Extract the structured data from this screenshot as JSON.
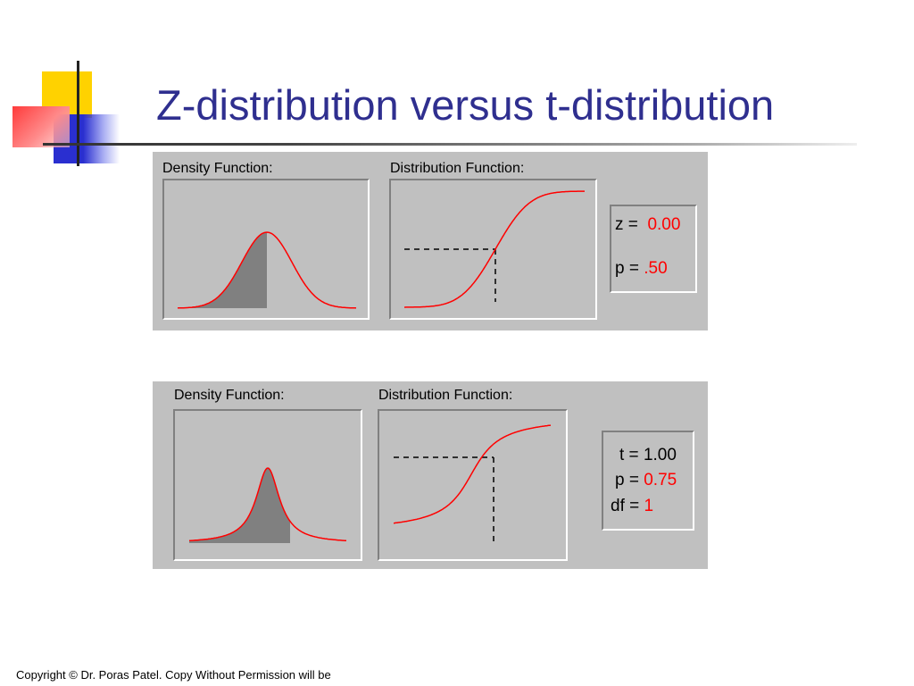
{
  "title": "Z-distribution versus t-distribution",
  "z_panel": {
    "density_label": "Density Function:",
    "distribution_label": "Distribution Function:",
    "z_label": "z =",
    "z_value": "0.00",
    "p_label": "p =",
    "p_value": ".50"
  },
  "t_panel": {
    "density_label": "Density Function:",
    "distribution_label": "Distribution Function:",
    "t_label": "t =",
    "t_value": "1.00",
    "p_label": "p =",
    "p_value": "0.75",
    "df_label": "df =",
    "df_value": "1"
  },
  "colors": {
    "title": "#2f2f8f",
    "curve": "#ff0000",
    "shade": "#808080",
    "panel_bg": "#c0c0c0"
  },
  "footer": {
    "copyright": "Copyright © Dr. Poras Patel. Copy Without Permission will be"
  }
}
